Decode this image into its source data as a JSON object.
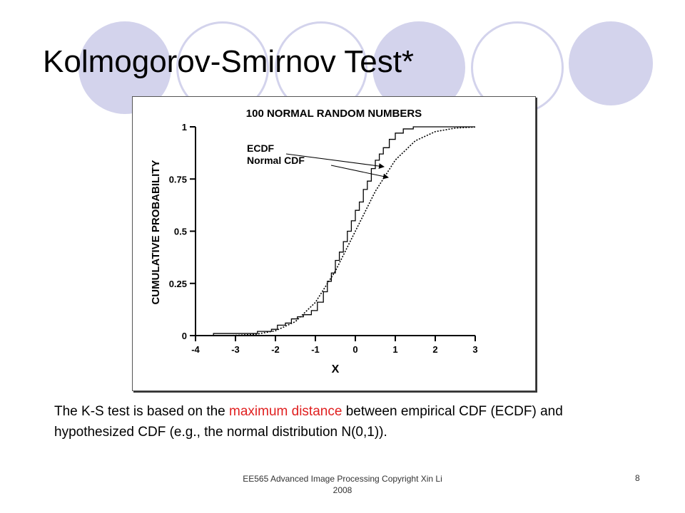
{
  "slide": {
    "title": "Kolmogorov-Smirnov Test*",
    "caption_before": "The K-S test is based on the ",
    "caption_highlight": "maximum distance",
    "caption_after": " between empirical CDF (ECDF) and hypothesized CDF (e.g., the normal distribution N(0,1)).",
    "footer": "EE565 Advanced Image Processing Copyright Xin Li 2008",
    "page_number": "8"
  },
  "colors": {
    "decor_circle": "#d3d3ec",
    "highlight": "#e02020"
  },
  "chart_data": {
    "type": "line",
    "title": "100 NORMAL RANDOM NUMBERS",
    "xlabel": "X",
    "ylabel": "CUMULATIVE PROBABILITY",
    "xlim": [
      -4,
      3
    ],
    "ylim": [
      0,
      1
    ],
    "xticks": [
      "-4",
      "-3",
      "-2",
      "-1",
      "0",
      "1",
      "2",
      "3"
    ],
    "yticks": [
      "0",
      "0.25",
      "0.5",
      "0.75",
      "1"
    ],
    "legend": [
      "ECDF",
      "Normal CDF"
    ],
    "grid": false,
    "series": [
      {
        "name": "ECDF",
        "style": "step",
        "x": [
          -3.55,
          -2.45,
          -2.1,
          -1.95,
          -1.75,
          -1.6,
          -1.45,
          -1.3,
          -1.1,
          -0.95,
          -0.8,
          -0.7,
          -0.6,
          -0.5,
          -0.4,
          -0.3,
          -0.2,
          -0.1,
          0,
          0.1,
          0.2,
          0.3,
          0.4,
          0.5,
          0.6,
          0.7,
          0.85,
          1.0,
          1.2,
          1.45
        ],
        "y": [
          0.01,
          0.02,
          0.03,
          0.05,
          0.06,
          0.08,
          0.09,
          0.1,
          0.12,
          0.16,
          0.21,
          0.26,
          0.3,
          0.36,
          0.4,
          0.45,
          0.5,
          0.55,
          0.6,
          0.64,
          0.7,
          0.74,
          0.8,
          0.84,
          0.87,
          0.9,
          0.94,
          0.97,
          0.99,
          1.0
        ]
      },
      {
        "name": "Normal CDF",
        "style": "dotted",
        "x": [
          -4,
          -3.5,
          -3,
          -2.5,
          -2,
          -1.5,
          -1,
          -0.5,
          0,
          0.5,
          1,
          1.5,
          2,
          2.5,
          3
        ],
        "y": [
          0.0,
          0.0,
          0.001,
          0.006,
          0.023,
          0.067,
          0.159,
          0.309,
          0.5,
          0.691,
          0.841,
          0.933,
          0.977,
          0.994,
          0.999
        ]
      }
    ]
  }
}
